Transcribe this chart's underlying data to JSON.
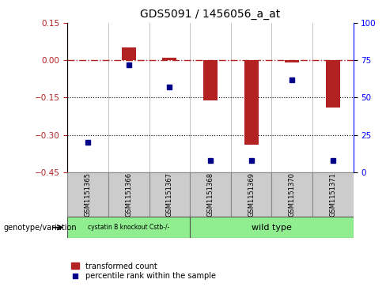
{
  "title": "GDS5091 / 1456056_a_at",
  "samples": [
    "GSM1151365",
    "GSM1151366",
    "GSM1151367",
    "GSM1151368",
    "GSM1151369",
    "GSM1151370",
    "GSM1151371"
  ],
  "bar_values": [
    0.0,
    0.05,
    0.01,
    -0.16,
    -0.34,
    -0.01,
    -0.19
  ],
  "dot_values": [
    20,
    72,
    57,
    8,
    8,
    62,
    8
  ],
  "ylim_left": [
    -0.45,
    0.15
  ],
  "ylim_right": [
    0,
    100
  ],
  "yticks_left": [
    0.15,
    0.0,
    -0.15,
    -0.3,
    -0.45
  ],
  "yticks_right": [
    100,
    75,
    50,
    25,
    0
  ],
  "dotted_lines": [
    -0.15,
    -0.3
  ],
  "bar_color": "#b22222",
  "dot_color": "#00008b",
  "group1_label": "cystatin B knockout Cstb-/-",
  "group2_label": "wild type",
  "group1_samples": 3,
  "group2_samples": 4,
  "legend_label_bar": "transformed count",
  "legend_label_dot": "percentile rank within the sample",
  "bar_width": 0.35,
  "group_label": "genotype/variation",
  "sample_box_color": "#cccccc",
  "group_box_color": "#90ee90"
}
